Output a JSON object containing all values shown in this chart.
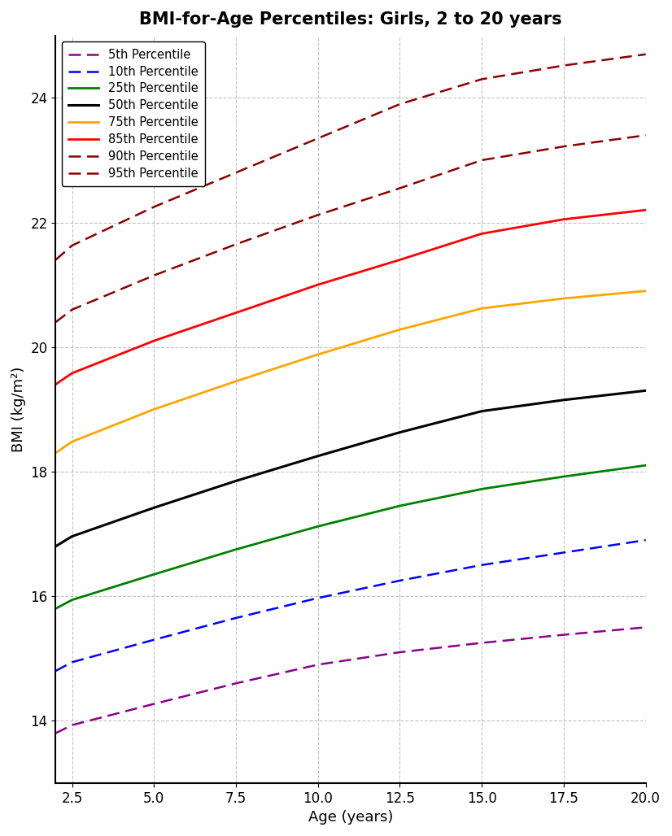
{
  "title": "BMI-for-Age Percentiles: Girls, 2 to 20 years",
  "xlabel": "Age (years)",
  "ylabel": "BMI (kg/m²)",
  "xlim": [
    2,
    20
  ],
  "ylim": [
    13,
    25
  ],
  "x_ticks": [
    2.5,
    5.0,
    7.5,
    10.0,
    12.5,
    15.0,
    17.5,
    20.0
  ],
  "y_ticks": [
    14,
    16,
    18,
    20,
    22,
    24
  ],
  "percentiles": [
    {
      "label": "5th Percentile",
      "color": "#8B008B",
      "linestyle": "dashed",
      "linewidth": 1.8,
      "ages": [
        2,
        2.5,
        5,
        7.5,
        10,
        12.5,
        15,
        17.5,
        20
      ],
      "bmi": [
        13.8,
        13.93,
        14.27,
        14.6,
        14.9,
        15.1,
        15.25,
        15.38,
        15.5
      ]
    },
    {
      "label": "10th Percentile",
      "color": "#0000FF",
      "linestyle": "dashed",
      "linewidth": 1.8,
      "ages": [
        2,
        2.5,
        5,
        7.5,
        10,
        12.5,
        15,
        17.5,
        20
      ],
      "bmi": [
        14.8,
        14.94,
        15.3,
        15.65,
        15.97,
        16.25,
        16.5,
        16.7,
        16.9
      ]
    },
    {
      "label": "25th Percentile",
      "color": "#008000",
      "linestyle": "solid",
      "linewidth": 2.0,
      "ages": [
        2,
        2.5,
        5,
        7.5,
        10,
        12.5,
        15,
        17.5,
        20
      ],
      "bmi": [
        15.8,
        15.94,
        16.35,
        16.75,
        17.12,
        17.45,
        17.72,
        17.92,
        18.1
      ]
    },
    {
      "label": "50th Percentile",
      "color": "#000000",
      "linestyle": "solid",
      "linewidth": 2.2,
      "ages": [
        2,
        2.5,
        5,
        7.5,
        10,
        12.5,
        15,
        17.5,
        20
      ],
      "bmi": [
        16.8,
        16.96,
        17.42,
        17.85,
        18.25,
        18.63,
        18.97,
        19.15,
        19.3
      ]
    },
    {
      "label": "75th Percentile",
      "color": "#FFA500",
      "linestyle": "solid",
      "linewidth": 2.0,
      "ages": [
        2,
        2.5,
        5,
        7.5,
        10,
        12.5,
        15,
        17.5,
        20
      ],
      "bmi": [
        18.3,
        18.48,
        19.0,
        19.45,
        19.88,
        20.28,
        20.62,
        20.78,
        20.9
      ]
    },
    {
      "label": "85th Percentile",
      "color": "#FF0000",
      "linestyle": "solid",
      "linewidth": 2.0,
      "ages": [
        2,
        2.5,
        5,
        7.5,
        10,
        12.5,
        15,
        17.5,
        20
      ],
      "bmi": [
        19.4,
        19.58,
        20.1,
        20.55,
        21.0,
        21.4,
        21.82,
        22.05,
        22.2
      ]
    },
    {
      "label": "90th Percentile",
      "color": "#8B0000",
      "linestyle": "dashed",
      "linewidth": 1.8,
      "ages": [
        2,
        2.5,
        5,
        7.5,
        10,
        12.5,
        15,
        17.5,
        20
      ],
      "bmi": [
        20.4,
        20.6,
        21.15,
        21.65,
        22.12,
        22.55,
        23.0,
        23.22,
        23.4
      ]
    },
    {
      "label": "95th Percentile",
      "color": "#8B0000",
      "linestyle": "dashed",
      "linewidth": 1.8,
      "ages": [
        2,
        2.5,
        5,
        7.5,
        10,
        12.5,
        15,
        17.5,
        20
      ],
      "bmi": [
        21.4,
        21.63,
        22.25,
        22.8,
        23.35,
        23.9,
        24.3,
        24.52,
        24.7
      ]
    }
  ],
  "grid_color": "#aaaaaa",
  "grid_linestyle": "dashed",
  "grid_alpha": 0.7,
  "background_color": "#ffffff",
  "title_fontsize": 15,
  "label_fontsize": 13,
  "tick_fontsize": 12,
  "legend_fontsize": 10.5,
  "figsize": [
    8.26,
    10.28
  ],
  "dpi": 100
}
